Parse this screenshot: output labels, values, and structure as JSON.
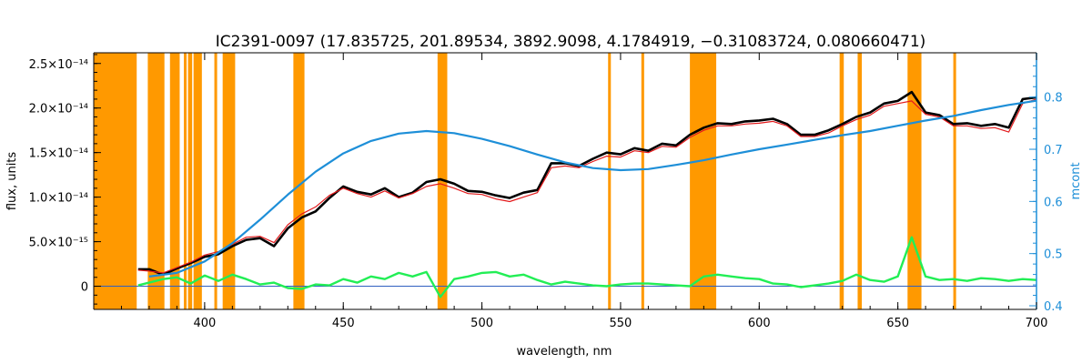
{
  "chart_data": {
    "type": "line",
    "title": "IC2391-0097    (17.835725, 201.89534, 3892.9098, 4.1784919, −0.31083724, 0.080660471)",
    "xlabel": "wavelength, nm",
    "ylabel": "flux, units",
    "y2label": "mcont",
    "xlim": [
      360,
      700
    ],
    "ylim": [
      -2.6e-15,
      2.62e-14
    ],
    "y2lim": [
      0.393,
      0.885
    ],
    "x_ticks": [
      400,
      450,
      500,
      550,
      600,
      650,
      700
    ],
    "x_tick_labels": [
      "400",
      "450",
      "500",
      "550",
      "600",
      "650",
      "700"
    ],
    "y_ticks": [
      0,
      5e-15,
      1e-14,
      1.5e-14,
      2e-14,
      2.5e-14
    ],
    "y_tick_labels": [
      "0",
      "5.0×10⁻¹⁵",
      "1.0×10⁻¹⁴",
      "1.5×10⁻¹⁴",
      "2.0×10⁻¹⁴",
      "2.5×10⁻¹⁴"
    ],
    "y2_ticks": [
      0.4,
      0.5,
      0.6,
      0.7,
      0.8
    ],
    "y2_tick_labels": [
      "0.4",
      "0.5",
      "0.6",
      "0.7",
      "0.8"
    ],
    "masked_regions": [
      [
        360,
        375.5
      ],
      [
        379.5,
        385.5
      ],
      [
        387.5,
        391.0
      ],
      [
        392.5,
        393.5
      ],
      [
        394.0,
        395.5
      ],
      [
        396.0,
        399.0
      ],
      [
        403.5,
        404.5
      ],
      [
        406.5,
        411.0
      ],
      [
        432.0,
        436.0
      ],
      [
        484.0,
        487.5
      ],
      [
        545.5,
        546.5
      ],
      [
        557.5,
        558.5
      ],
      [
        575.0,
        584.5
      ],
      [
        629.0,
        630.5
      ],
      [
        635.5,
        637.0
      ],
      [
        653.5,
        658.5
      ],
      [
        670.0,
        671.0
      ]
    ],
    "series": [
      {
        "role": "observed-spectrum",
        "color": "#000000",
        "x": [
          376,
          380,
          385,
          390,
          395,
          400,
          405,
          410,
          415,
          420,
          425,
          430,
          435,
          440,
          445,
          450,
          455,
          460,
          465,
          470,
          475,
          480,
          485,
          490,
          495,
          500,
          505,
          510,
          515,
          520,
          525,
          530,
          535,
          540,
          545,
          550,
          555,
          560,
          565,
          570,
          575,
          580,
          585,
          590,
          595,
          600,
          605,
          610,
          615,
          620,
          625,
          630,
          635,
          640,
          645,
          650,
          655,
          660,
          665,
          670,
          675,
          680,
          685,
          690,
          695,
          700
        ],
        "y": [
          1.9e-15,
          1.9e-15,
          1.3e-15,
          2e-15,
          2.6e-15,
          3.3e-15,
          3.6e-15,
          4.5e-15,
          5.2e-15,
          5.4e-15,
          4.5e-15,
          6.5e-15,
          7.7e-15,
          8.4e-15,
          9.9e-15,
          1.12e-14,
          1.06e-14,
          1.03e-14,
          1.1e-14,
          1e-14,
          1.05e-14,
          1.17e-14,
          1.2e-14,
          1.15e-14,
          1.07e-14,
          1.06e-14,
          1.02e-14,
          9.9e-15,
          1.05e-14,
          1.08e-14,
          1.38e-14,
          1.38e-14,
          1.35e-14,
          1.43e-14,
          1.5e-14,
          1.48e-14,
          1.55e-14,
          1.52e-14,
          1.6e-14,
          1.58e-14,
          1.7e-14,
          1.78e-14,
          1.83e-14,
          1.82e-14,
          1.85e-14,
          1.86e-14,
          1.88e-14,
          1.82e-14,
          1.7e-14,
          1.7e-14,
          1.75e-14,
          1.82e-14,
          1.9e-14,
          1.95e-14,
          2.05e-14,
          2.08e-14,
          2.18e-14,
          1.95e-14,
          1.92e-14,
          1.82e-14,
          1.83e-14,
          1.8e-14,
          1.82e-14,
          1.78e-14,
          2.1e-14,
          2.12e-14
        ]
      },
      {
        "role": "model-fit",
        "color": "#e31a1c",
        "x": [
          376,
          380,
          385,
          390,
          395,
          400,
          405,
          410,
          415,
          420,
          425,
          430,
          435,
          440,
          445,
          450,
          455,
          460,
          465,
          470,
          475,
          480,
          485,
          490,
          495,
          500,
          505,
          510,
          515,
          520,
          525,
          530,
          535,
          540,
          545,
          550,
          555,
          560,
          565,
          570,
          575,
          580,
          585,
          590,
          595,
          600,
          605,
          610,
          615,
          620,
          625,
          630,
          635,
          640,
          645,
          650,
          655,
          660,
          665,
          670,
          675,
          680,
          685,
          690,
          695,
          700
        ],
        "y": [
          1.8e-15,
          1.7e-15,
          1.5e-15,
          2.1e-15,
          2.7e-15,
          3.5e-15,
          3.9e-15,
          4.7e-15,
          5.5e-15,
          5.6e-15,
          4.9e-15,
          6.9e-15,
          8.1e-15,
          8.9e-15,
          1.02e-14,
          1.1e-14,
          1.04e-14,
          1e-14,
          1.07e-14,
          9.9e-15,
          1.04e-14,
          1.12e-14,
          1.15e-14,
          1.1e-14,
          1.04e-14,
          1.03e-14,
          9.8e-15,
          9.5e-15,
          1e-14,
          1.05e-14,
          1.33e-14,
          1.35e-14,
          1.33e-14,
          1.4e-14,
          1.46e-14,
          1.45e-14,
          1.52e-14,
          1.5e-14,
          1.57e-14,
          1.56e-14,
          1.67e-14,
          1.75e-14,
          1.8e-14,
          1.8e-14,
          1.82e-14,
          1.83e-14,
          1.85e-14,
          1.8e-14,
          1.68e-14,
          1.68e-14,
          1.72e-14,
          1.8e-14,
          1.87e-14,
          1.92e-14,
          2.02e-14,
          2.05e-14,
          2.08e-14,
          1.93e-14,
          1.9e-14,
          1.8e-14,
          1.8e-14,
          1.77e-14,
          1.78e-14,
          1.73e-14,
          2.05e-14,
          2.1e-14
        ]
      },
      {
        "role": "continuum-mcont",
        "axis": "right",
        "color": "#1e8fd8",
        "x": [
          380,
          390,
          400,
          410,
          420,
          430,
          440,
          450,
          460,
          470,
          480,
          490,
          500,
          510,
          520,
          530,
          540,
          550,
          560,
          570,
          580,
          590,
          600,
          610,
          620,
          630,
          640,
          650,
          660,
          670,
          680,
          690,
          700
        ],
        "y": [
          0.456,
          0.463,
          0.485,
          0.52,
          0.565,
          0.613,
          0.657,
          0.692,
          0.716,
          0.73,
          0.735,
          0.731,
          0.72,
          0.706,
          0.69,
          0.675,
          0.664,
          0.66,
          0.662,
          0.67,
          0.679,
          0.69,
          0.7,
          0.709,
          0.718,
          0.727,
          0.735,
          0.745,
          0.755,
          0.764,
          0.775,
          0.785,
          0.793
        ]
      },
      {
        "role": "residuals",
        "color": "#22ee55",
        "x": [
          376,
          380,
          385,
          390,
          395,
          400,
          405,
          410,
          415,
          420,
          425,
          430,
          435,
          440,
          445,
          450,
          455,
          460,
          465,
          470,
          475,
          480,
          485,
          490,
          495,
          500,
          505,
          510,
          515,
          520,
          525,
          530,
          535,
          540,
          545,
          550,
          555,
          560,
          565,
          570,
          575,
          580,
          585,
          590,
          595,
          600,
          605,
          610,
          615,
          620,
          625,
          630,
          635,
          640,
          645,
          650,
          655,
          660,
          665,
          670,
          675,
          680,
          685,
          690,
          695,
          700
        ],
        "y": [
          1e-16,
          4e-16,
          8e-16,
          1e-15,
          3e-16,
          1.2e-15,
          6e-16,
          1.3e-15,
          8e-16,
          2e-16,
          4e-16,
          -2e-16,
          -3e-16,
          2e-16,
          1e-16,
          8e-16,
          4e-16,
          1.1e-15,
          8e-16,
          1.5e-15,
          1.1e-15,
          1.6e-15,
          -1.2e-15,
          8e-16,
          1.1e-15,
          1.5e-15,
          1.6e-15,
          1.1e-15,
          1.3e-15,
          7e-16,
          2e-16,
          5e-16,
          3e-16,
          1e-16,
          0,
          2e-16,
          3e-16,
          3e-16,
          2e-16,
          1e-16,
          0,
          1.1e-15,
          1.3e-15,
          1.1e-15,
          9e-16,
          8e-16,
          3e-16,
          2e-16,
          -1e-16,
          1e-16,
          3e-16,
          6e-16,
          1.3e-15,
          7e-16,
          5e-16,
          1.1e-15,
          5.5e-15,
          1.1e-15,
          7e-16,
          8e-16,
          6e-16,
          9e-16,
          8e-16,
          6e-16,
          8e-16,
          7e-16
        ]
      }
    ]
  }
}
